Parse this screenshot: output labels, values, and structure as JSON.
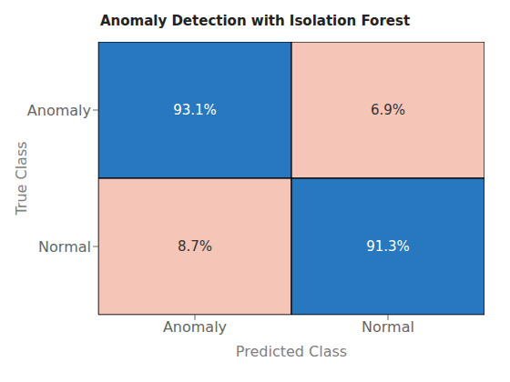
{
  "chart_data": {
    "type": "heatmap",
    "title": "Anomaly Detection with Isolation Forest",
    "xlabel": "Predicted Class",
    "ylabel": "True Class",
    "x_categories": [
      "Anomaly",
      "Normal"
    ],
    "y_categories": [
      "Anomaly",
      "Normal"
    ],
    "values": [
      [
        93.1,
        6.9
      ],
      [
        8.7,
        91.3
      ]
    ],
    "value_labels": [
      [
        "93.1%",
        "6.9%"
      ],
      [
        "8.7%",
        "91.3%"
      ]
    ],
    "colors": [
      [
        "#2878BF",
        "#F5C5B8"
      ],
      [
        "#F5C5B8",
        "#2878BF"
      ]
    ],
    "data_labels": true
  }
}
